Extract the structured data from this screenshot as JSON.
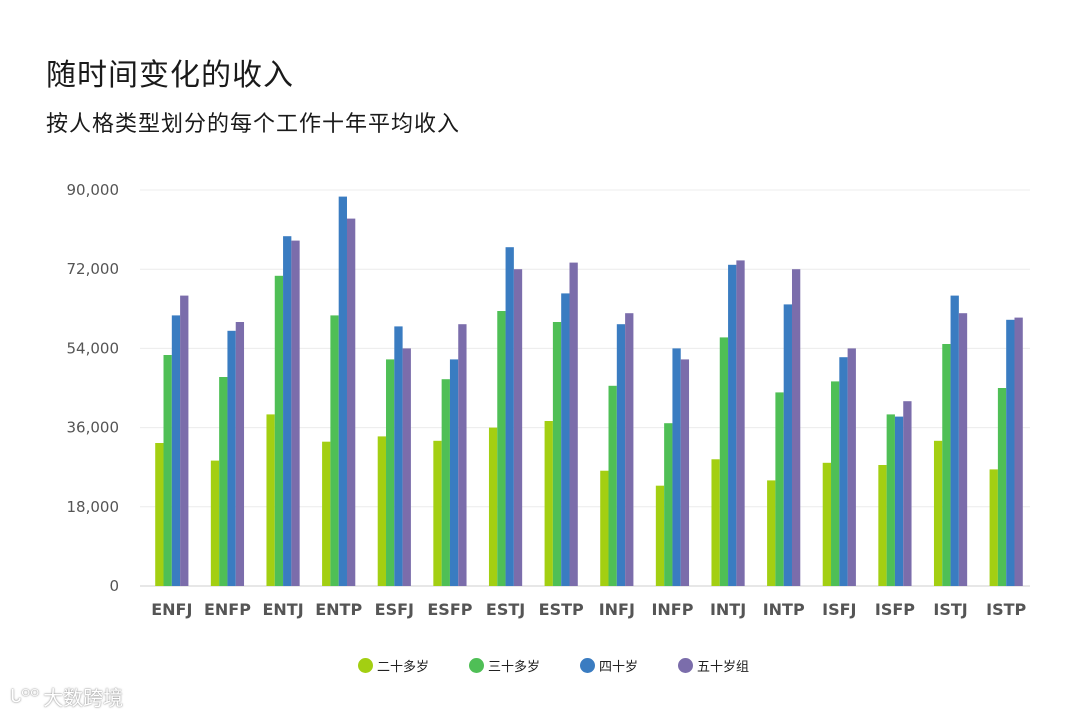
{
  "title": "随时间变化的收入",
  "subtitle": "按人格类型划分的每个工作十年平均收入",
  "watermark": {
    "mark": "ᒐᴼᴼ",
    "text": "大数跨境"
  },
  "chart_data": {
    "type": "bar",
    "categories": [
      "ENFJ",
      "ENFP",
      "ENTJ",
      "ENTP",
      "ESFJ",
      "ESFP",
      "ESTJ",
      "ESTP",
      "INFJ",
      "INFP",
      "INTJ",
      "INTP",
      "ISFJ",
      "ISFP",
      "ISTJ",
      "ISTP"
    ],
    "series": [
      {
        "name": "二十多岁",
        "color": "#a3cf12",
        "values": [
          32500,
          28500,
          39000,
          32800,
          34000,
          33000,
          36000,
          37500,
          26200,
          22800,
          28800,
          24000,
          28000,
          27500,
          33000,
          26500
        ]
      },
      {
        "name": "三十多岁",
        "color": "#4fbf56",
        "values": [
          52500,
          47500,
          70500,
          61500,
          51500,
          47000,
          62500,
          60000,
          45500,
          37000,
          56500,
          44000,
          46500,
          39000,
          55000,
          45000
        ]
      },
      {
        "name": "四十岁",
        "color": "#3a7cc1",
        "values": [
          61500,
          58000,
          79500,
          88500,
          59000,
          51500,
          77000,
          66500,
          59500,
          54000,
          73000,
          64000,
          52000,
          38500,
          66000,
          60500
        ]
      },
      {
        "name": "五十岁组",
        "color": "#7b6dab",
        "values": [
          66000,
          60000,
          78500,
          83500,
          54000,
          59500,
          72000,
          73500,
          62000,
          51500,
          74000,
          72000,
          54000,
          42000,
          62000,
          61000
        ]
      }
    ],
    "yticks": [
      "0",
      "18,000",
      "36,000",
      "54,000",
      "72,000",
      "90,000"
    ],
    "ylim": [
      0,
      90000
    ],
    "grid": true,
    "legend_position": "bottom"
  }
}
